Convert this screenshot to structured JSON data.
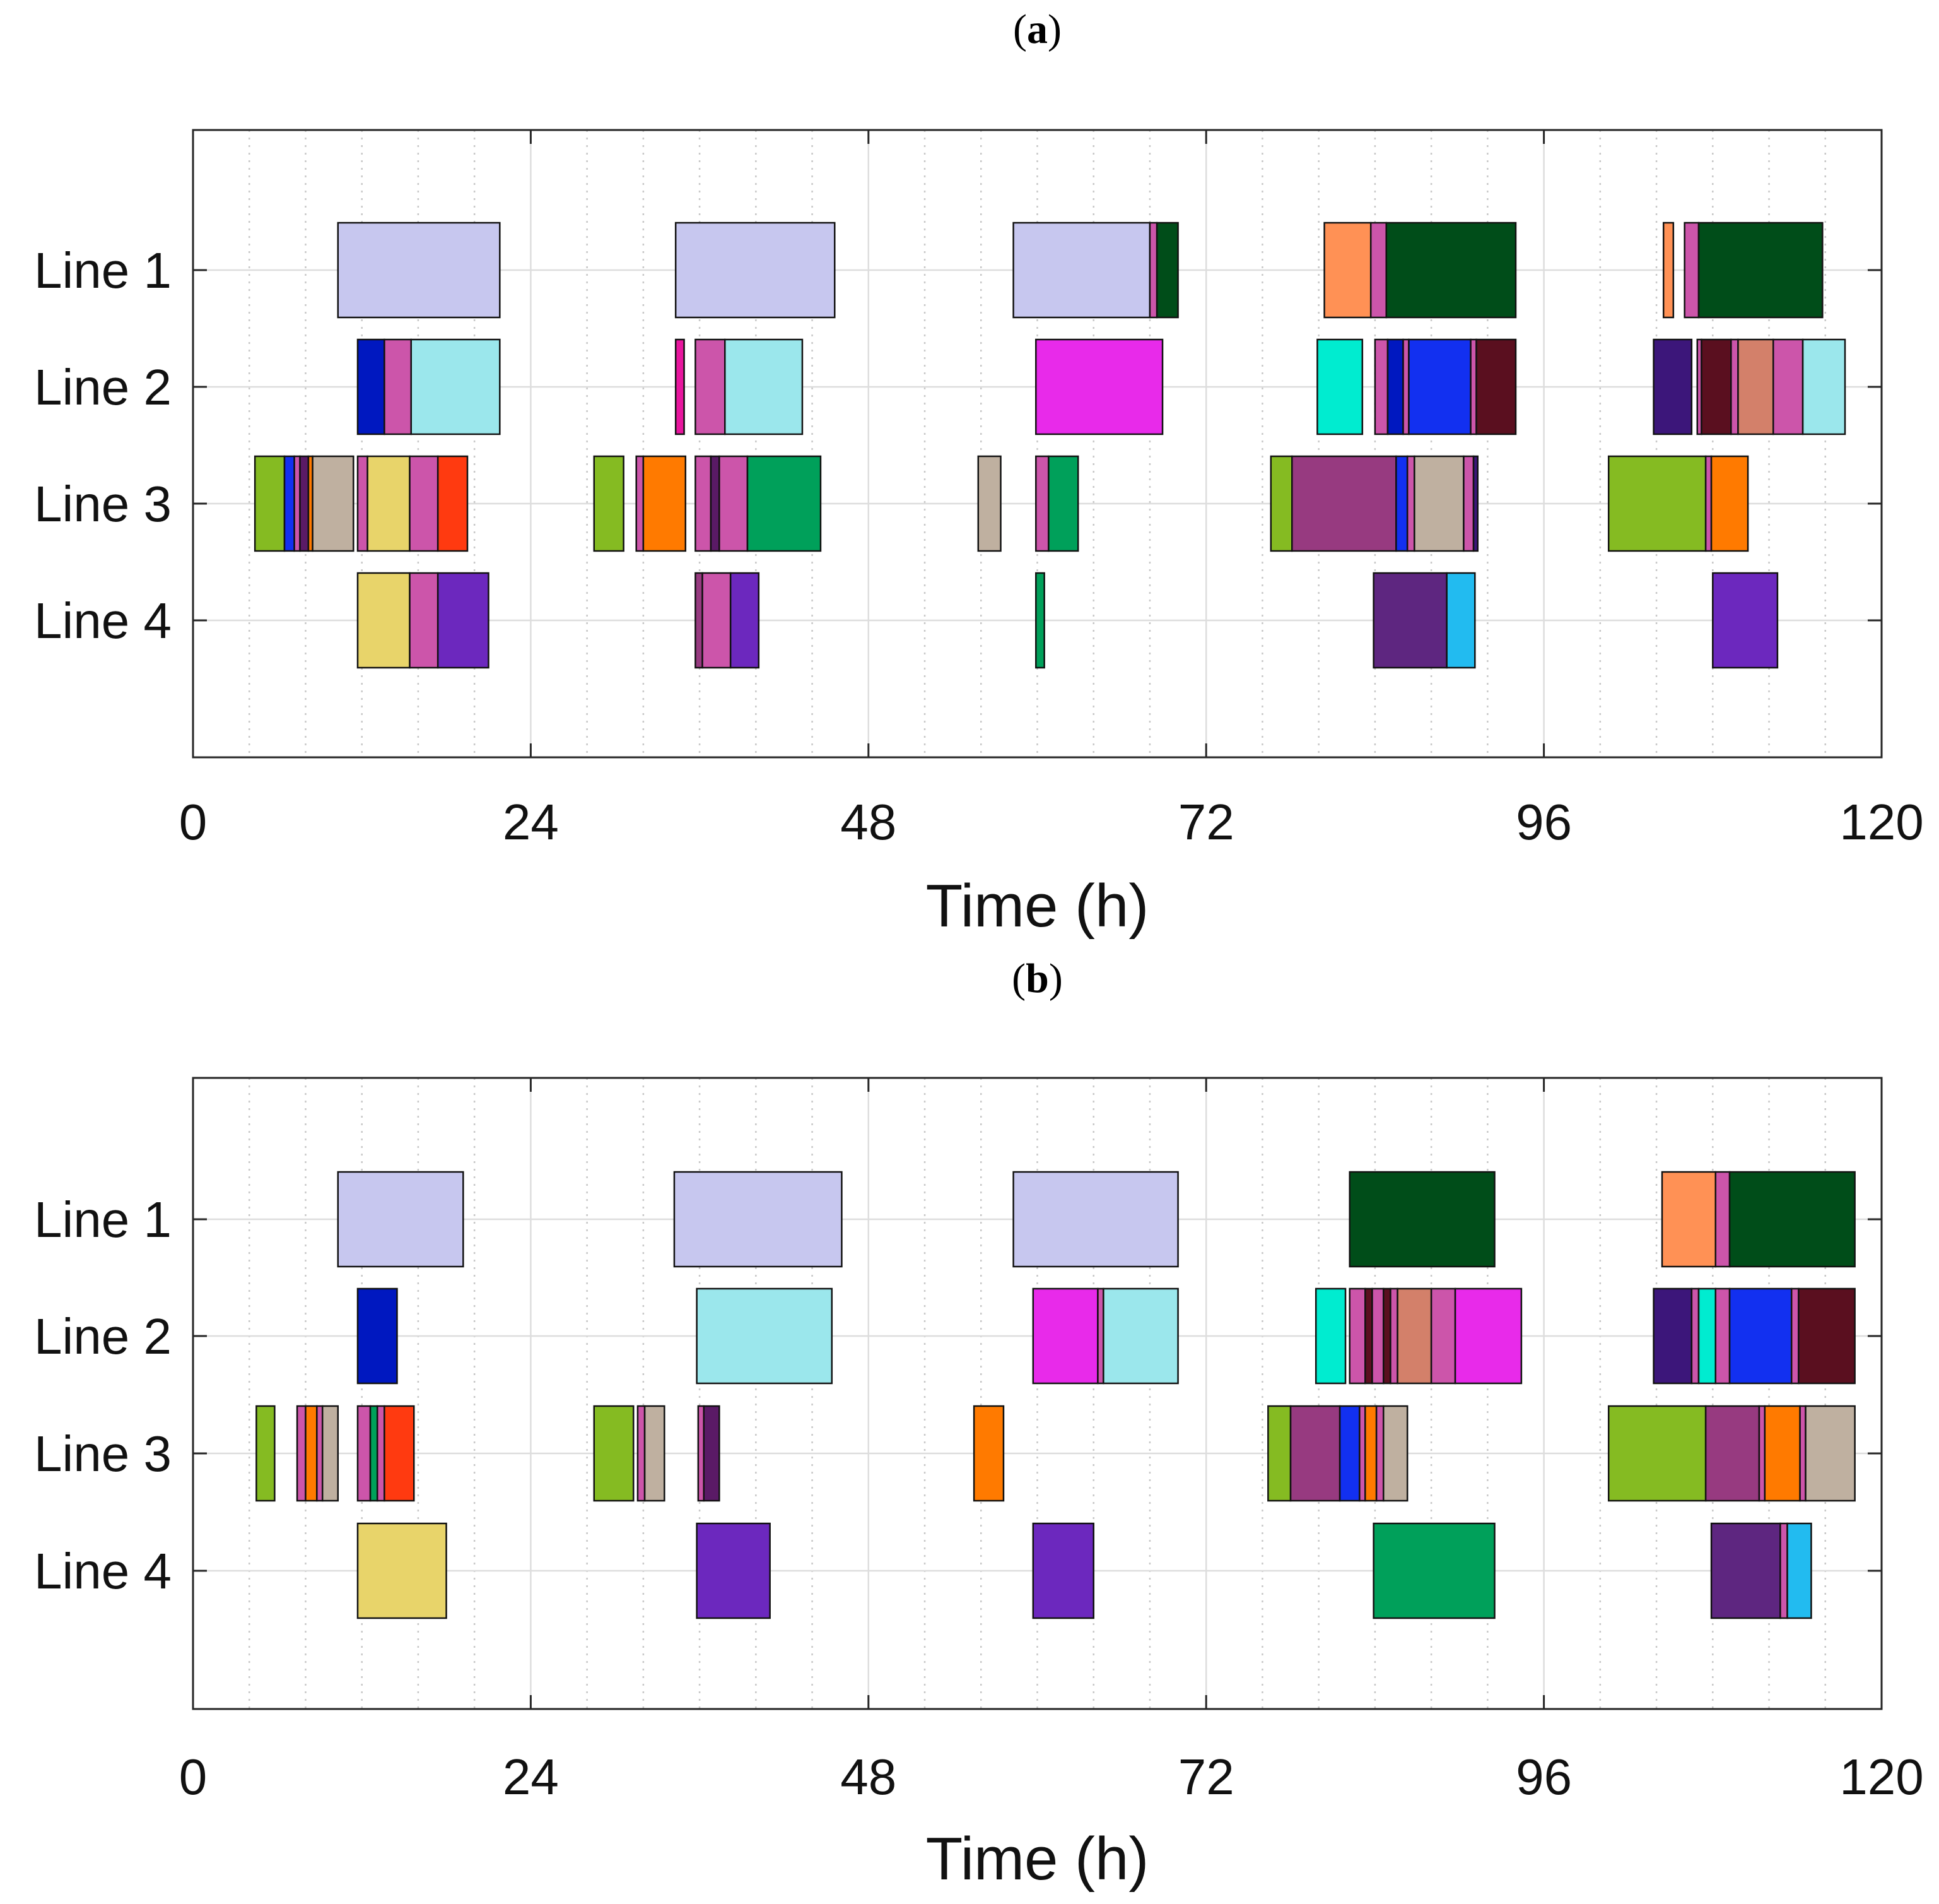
{
  "chart_data": [
    {
      "type": "gantt",
      "panel_label": "a",
      "xlabel": "Time (h)",
      "xlim": [
        0,
        120
      ],
      "xticks": [
        "0",
        "24",
        "48",
        "72",
        "96",
        "120"
      ],
      "rows": [
        "Line 1",
        "Line 2",
        "Line 3",
        "Line 4"
      ],
      "tasks": [
        {
          "row": 1,
          "start": 10.3,
          "end": 21.8,
          "color": "#c7c7ef"
        },
        {
          "row": 1,
          "start": 34.3,
          "end": 45.6,
          "color": "#c7c7ef"
        },
        {
          "row": 1,
          "start": 58.3,
          "end": 68.0,
          "color": "#c7c7ef"
        },
        {
          "row": 1,
          "start": 68.0,
          "end": 68.5,
          "color": "#cc55aa"
        },
        {
          "row": 1,
          "start": 68.5,
          "end": 70.0,
          "color": "#004d19"
        },
        {
          "row": 1,
          "start": 80.4,
          "end": 83.7,
          "color": "#ff9155"
        },
        {
          "row": 1,
          "start": 83.7,
          "end": 84.8,
          "color": "#cc55aa"
        },
        {
          "row": 1,
          "start": 84.8,
          "end": 94.0,
          "color": "#004d19"
        },
        {
          "row": 1,
          "start": 104.5,
          "end": 105.2,
          "color": "#ff9155"
        },
        {
          "row": 1,
          "start": 106.0,
          "end": 107.0,
          "color": "#cc55aa"
        },
        {
          "row": 1,
          "start": 107.0,
          "end": 115.8,
          "color": "#004d19"
        },
        {
          "row": 2,
          "start": 11.7,
          "end": 13.6,
          "color": "#0018c0"
        },
        {
          "row": 2,
          "start": 13.6,
          "end": 15.5,
          "color": "#cc55aa"
        },
        {
          "row": 2,
          "start": 15.5,
          "end": 21.8,
          "color": "#9be7ec"
        },
        {
          "row": 2,
          "start": 34.3,
          "end": 34.9,
          "color": "#e8169e"
        },
        {
          "row": 2,
          "start": 35.7,
          "end": 37.8,
          "color": "#cc55aa"
        },
        {
          "row": 2,
          "start": 37.8,
          "end": 43.3,
          "color": "#9be7ec"
        },
        {
          "row": 2,
          "start": 59.9,
          "end": 68.9,
          "color": "#e82aea"
        },
        {
          "row": 2,
          "start": 79.9,
          "end": 83.1,
          "color": "#00ecd0"
        },
        {
          "row": 2,
          "start": 84.0,
          "end": 84.9,
          "color": "#cc55aa"
        },
        {
          "row": 2,
          "start": 84.9,
          "end": 86.0,
          "color": "#0018c0"
        },
        {
          "row": 2,
          "start": 86.0,
          "end": 86.4,
          "color": "#cc55aa"
        },
        {
          "row": 2,
          "start": 86.4,
          "end": 90.8,
          "color": "#1230f0"
        },
        {
          "row": 2,
          "start": 90.8,
          "end": 91.2,
          "color": "#cc55aa"
        },
        {
          "row": 2,
          "start": 91.2,
          "end": 94.0,
          "color": "#5a0f1f"
        },
        {
          "row": 2,
          "start": 103.8,
          "end": 106.5,
          "color": "#3c167a"
        },
        {
          "row": 2,
          "start": 106.9,
          "end": 107.2,
          "color": "#cc55aa"
        },
        {
          "row": 2,
          "start": 107.2,
          "end": 109.3,
          "color": "#5a0f1f"
        },
        {
          "row": 2,
          "start": 109.3,
          "end": 109.8,
          "color": "#cc55aa"
        },
        {
          "row": 2,
          "start": 109.8,
          "end": 112.3,
          "color": "#d3806a"
        },
        {
          "row": 2,
          "start": 112.3,
          "end": 114.4,
          "color": "#cc55aa"
        },
        {
          "row": 2,
          "start": 114.4,
          "end": 117.4,
          "color": "#9be7ec"
        },
        {
          "row": 3,
          "start": 4.4,
          "end": 6.5,
          "color": "#85bb22"
        },
        {
          "row": 3,
          "start": 6.5,
          "end": 7.2,
          "color": "#1230f0"
        },
        {
          "row": 3,
          "start": 7.2,
          "end": 7.6,
          "color": "#cc55aa"
        },
        {
          "row": 3,
          "start": 7.6,
          "end": 8.2,
          "color": "#5a1a66"
        },
        {
          "row": 3,
          "start": 8.2,
          "end": 8.5,
          "color": "#ff7a00"
        },
        {
          "row": 3,
          "start": 8.5,
          "end": 11.4,
          "color": "#bfb0a0"
        },
        {
          "row": 3,
          "start": 11.7,
          "end": 12.4,
          "color": "#cc55aa"
        },
        {
          "row": 3,
          "start": 12.4,
          "end": 15.4,
          "color": "#e8d46a"
        },
        {
          "row": 3,
          "start": 15.4,
          "end": 17.4,
          "color": "#cc55aa"
        },
        {
          "row": 3,
          "start": 17.4,
          "end": 19.5,
          "color": "#ff3a10"
        },
        {
          "row": 3,
          "start": 28.5,
          "end": 30.6,
          "color": "#85bb22"
        },
        {
          "row": 3,
          "start": 31.5,
          "end": 32.0,
          "color": "#cc55aa"
        },
        {
          "row": 3,
          "start": 32.0,
          "end": 35.0,
          "color": "#ff7a00"
        },
        {
          "row": 3,
          "start": 35.7,
          "end": 36.8,
          "color": "#cc55aa"
        },
        {
          "row": 3,
          "start": 36.8,
          "end": 37.4,
          "color": "#5a1a66"
        },
        {
          "row": 3,
          "start": 37.4,
          "end": 39.4,
          "color": "#cc55aa"
        },
        {
          "row": 3,
          "start": 39.4,
          "end": 44.6,
          "color": "#00a05a"
        },
        {
          "row": 3,
          "start": 55.8,
          "end": 57.4,
          "color": "#bfb0a0"
        },
        {
          "row": 3,
          "start": 59.9,
          "end": 60.8,
          "color": "#cc55aa"
        },
        {
          "row": 3,
          "start": 60.8,
          "end": 62.9,
          "color": "#00a05a"
        },
        {
          "row": 3,
          "start": 76.6,
          "end": 78.1,
          "color": "#85bb22"
        },
        {
          "row": 3,
          "start": 78.1,
          "end": 85.5,
          "color": "#973a80"
        },
        {
          "row": 3,
          "start": 85.5,
          "end": 86.3,
          "color": "#1230f0"
        },
        {
          "row": 3,
          "start": 86.3,
          "end": 86.8,
          "color": "#cc55aa"
        },
        {
          "row": 3,
          "start": 86.8,
          "end": 90.3,
          "color": "#bfb0a0"
        },
        {
          "row": 3,
          "start": 90.3,
          "end": 91.0,
          "color": "#cc55aa"
        },
        {
          "row": 3,
          "start": 91.0,
          "end": 91.3,
          "color": "#3c167a"
        },
        {
          "row": 3,
          "start": 100.6,
          "end": 107.5,
          "color": "#85bb22"
        },
        {
          "row": 3,
          "start": 107.5,
          "end": 107.9,
          "color": "#cc55aa"
        },
        {
          "row": 3,
          "start": 107.9,
          "end": 110.5,
          "color": "#ff7a00"
        },
        {
          "row": 4,
          "start": 11.7,
          "end": 15.4,
          "color": "#e8d46a"
        },
        {
          "row": 4,
          "start": 15.4,
          "end": 17.4,
          "color": "#cc55aa"
        },
        {
          "row": 4,
          "start": 17.4,
          "end": 21.0,
          "color": "#6c28be"
        },
        {
          "row": 4,
          "start": 35.7,
          "end": 36.2,
          "color": "#973a80"
        },
        {
          "row": 4,
          "start": 36.2,
          "end": 38.2,
          "color": "#cc55aa"
        },
        {
          "row": 4,
          "start": 38.2,
          "end": 40.2,
          "color": "#6c28be"
        },
        {
          "row": 4,
          "start": 59.9,
          "end": 60.5,
          "color": "#00a05a"
        },
        {
          "row": 4,
          "start": 83.9,
          "end": 89.1,
          "color": "#5e2680"
        },
        {
          "row": 4,
          "start": 89.1,
          "end": 91.1,
          "color": "#22bbf0"
        },
        {
          "row": 4,
          "start": 108.0,
          "end": 112.6,
          "color": "#6c28be"
        }
      ]
    },
    {
      "type": "gantt",
      "panel_label": "b",
      "xlabel": "Time (h)",
      "xlim": [
        0,
        120
      ],
      "xticks": [
        "0",
        "24",
        "48",
        "72",
        "96",
        "120"
      ],
      "rows": [
        "Line 1",
        "Line 2",
        "Line 3",
        "Line 4"
      ],
      "tasks": [
        {
          "row": 1,
          "start": 10.3,
          "end": 19.2,
          "color": "#c7c7ef"
        },
        {
          "row": 1,
          "start": 34.2,
          "end": 46.1,
          "color": "#c7c7ef"
        },
        {
          "row": 1,
          "start": 58.3,
          "end": 70.0,
          "color": "#c7c7ef"
        },
        {
          "row": 1,
          "start": 82.2,
          "end": 92.5,
          "color": "#004d19"
        },
        {
          "row": 1,
          "start": 104.4,
          "end": 108.2,
          "color": "#ff9155"
        },
        {
          "row": 1,
          "start": 108.2,
          "end": 109.2,
          "color": "#cc55aa"
        },
        {
          "row": 1,
          "start": 109.2,
          "end": 118.1,
          "color": "#004d19"
        },
        {
          "row": 2,
          "start": 11.7,
          "end": 14.5,
          "color": "#0018c0"
        },
        {
          "row": 2,
          "start": 35.8,
          "end": 45.4,
          "color": "#9be7ec"
        },
        {
          "row": 2,
          "start": 59.7,
          "end": 64.3,
          "color": "#e82aea"
        },
        {
          "row": 2,
          "start": 64.3,
          "end": 64.7,
          "color": "#cc55aa"
        },
        {
          "row": 2,
          "start": 64.7,
          "end": 70.0,
          "color": "#9be7ec"
        },
        {
          "row": 2,
          "start": 79.8,
          "end": 81.9,
          "color": "#00ecd0"
        },
        {
          "row": 2,
          "start": 82.2,
          "end": 83.3,
          "color": "#cc55aa"
        },
        {
          "row": 2,
          "start": 83.3,
          "end": 83.8,
          "color": "#5a0f1f"
        },
        {
          "row": 2,
          "start": 83.8,
          "end": 84.6,
          "color": "#cc55aa"
        },
        {
          "row": 2,
          "start": 84.6,
          "end": 85.1,
          "color": "#5a0f1f"
        },
        {
          "row": 2,
          "start": 85.1,
          "end": 85.6,
          "color": "#cc55aa"
        },
        {
          "row": 2,
          "start": 85.6,
          "end": 88.0,
          "color": "#d3806a"
        },
        {
          "row": 2,
          "start": 88.0,
          "end": 89.7,
          "color": "#cc55aa"
        },
        {
          "row": 2,
          "start": 89.7,
          "end": 94.4,
          "color": "#e82aea"
        },
        {
          "row": 2,
          "start": 103.8,
          "end": 106.5,
          "color": "#3c167a"
        },
        {
          "row": 2,
          "start": 106.5,
          "end": 107.0,
          "color": "#cc55aa"
        },
        {
          "row": 2,
          "start": 107.0,
          "end": 108.2,
          "color": "#00ecd0"
        },
        {
          "row": 2,
          "start": 108.2,
          "end": 109.2,
          "color": "#cc55aa"
        },
        {
          "row": 2,
          "start": 109.2,
          "end": 113.6,
          "color": "#1230f0"
        },
        {
          "row": 2,
          "start": 113.6,
          "end": 114.1,
          "color": "#cc55aa"
        },
        {
          "row": 2,
          "start": 114.1,
          "end": 118.1,
          "color": "#5a0f1f"
        },
        {
          "row": 3,
          "start": 4.5,
          "end": 5.8,
          "color": "#85bb22"
        },
        {
          "row": 3,
          "start": 7.4,
          "end": 8.0,
          "color": "#cc55aa"
        },
        {
          "row": 3,
          "start": 8.0,
          "end": 8.8,
          "color": "#ff7a00"
        },
        {
          "row": 3,
          "start": 8.8,
          "end": 9.2,
          "color": "#cc55aa"
        },
        {
          "row": 3,
          "start": 9.2,
          "end": 10.3,
          "color": "#bfb0a0"
        },
        {
          "row": 3,
          "start": 11.7,
          "end": 12.6,
          "color": "#cc55aa"
        },
        {
          "row": 3,
          "start": 12.6,
          "end": 13.1,
          "color": "#00a05a"
        },
        {
          "row": 3,
          "start": 13.1,
          "end": 13.6,
          "color": "#cc55aa"
        },
        {
          "row": 3,
          "start": 13.6,
          "end": 15.7,
          "color": "#ff3a10"
        },
        {
          "row": 3,
          "start": 28.5,
          "end": 31.3,
          "color": "#85bb22"
        },
        {
          "row": 3,
          "start": 31.6,
          "end": 32.1,
          "color": "#cc55aa"
        },
        {
          "row": 3,
          "start": 32.1,
          "end": 33.5,
          "color": "#bfb0a0"
        },
        {
          "row": 3,
          "start": 35.9,
          "end": 36.3,
          "color": "#cc55aa"
        },
        {
          "row": 3,
          "start": 36.3,
          "end": 37.4,
          "color": "#5a1a66"
        },
        {
          "row": 3,
          "start": 55.5,
          "end": 57.6,
          "color": "#ff7a00"
        },
        {
          "row": 3,
          "start": 76.4,
          "end": 78.0,
          "color": "#85bb22"
        },
        {
          "row": 3,
          "start": 78.0,
          "end": 81.5,
          "color": "#973a80"
        },
        {
          "row": 3,
          "start": 81.5,
          "end": 82.9,
          "color": "#1230f0"
        },
        {
          "row": 3,
          "start": 82.9,
          "end": 83.3,
          "color": "#cc55aa"
        },
        {
          "row": 3,
          "start": 83.3,
          "end": 84.1,
          "color": "#ff7a00"
        },
        {
          "row": 3,
          "start": 84.1,
          "end": 84.6,
          "color": "#cc55aa"
        },
        {
          "row": 3,
          "start": 84.6,
          "end": 86.3,
          "color": "#bfb0a0"
        },
        {
          "row": 3,
          "start": 100.6,
          "end": 107.5,
          "color": "#85bb22"
        },
        {
          "row": 3,
          "start": 107.5,
          "end": 111.3,
          "color": "#973a80"
        },
        {
          "row": 3,
          "start": 111.3,
          "end": 111.7,
          "color": "#cc55aa"
        },
        {
          "row": 3,
          "start": 111.7,
          "end": 114.2,
          "color": "#ff7a00"
        },
        {
          "row": 3,
          "start": 114.2,
          "end": 114.6,
          "color": "#cc55aa"
        },
        {
          "row": 3,
          "start": 114.6,
          "end": 118.1,
          "color": "#bfb0a0"
        },
        {
          "row": 4,
          "start": 11.7,
          "end": 18.0,
          "color": "#e8d46a"
        },
        {
          "row": 4,
          "start": 35.8,
          "end": 41.0,
          "color": "#6c28be"
        },
        {
          "row": 4,
          "start": 59.7,
          "end": 64.0,
          "color": "#6c28be"
        },
        {
          "row": 4,
          "start": 83.9,
          "end": 92.5,
          "color": "#00a05a"
        },
        {
          "row": 4,
          "start": 107.9,
          "end": 112.8,
          "color": "#5e2680"
        },
        {
          "row": 4,
          "start": 112.8,
          "end": 113.3,
          "color": "#cc55aa"
        },
        {
          "row": 4,
          "start": 113.3,
          "end": 115.0,
          "color": "#22bbf0"
        }
      ]
    }
  ]
}
